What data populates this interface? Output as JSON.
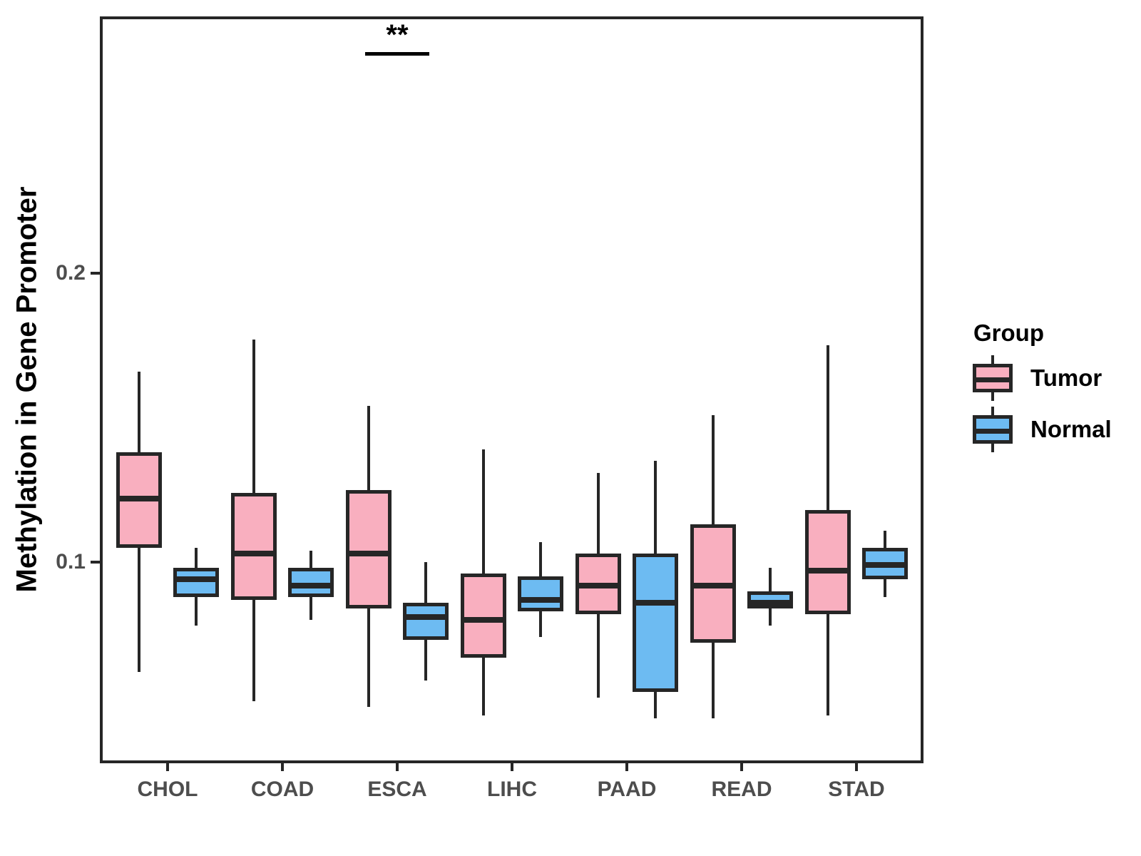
{
  "chart_data": {
    "type": "boxplot",
    "title": "",
    "xlabel": "",
    "ylabel": "Methylation in Gene Promoter",
    "categories": [
      "CHOL",
      "COAD",
      "ESCA",
      "LIHC",
      "PAAD",
      "READ",
      "STAD"
    ],
    "y_ticks": [
      "0.1",
      "0.2"
    ],
    "y_tick_values": [
      0.1,
      0.2
    ],
    "ylim": [
      0.0304,
      0.2889
    ],
    "grid": false,
    "panel_border": true,
    "colors": {
      "tumor_fill": "#F9AFBF",
      "normal_fill": "#6DBBF2",
      "stroke": "#262626",
      "axis_text": "#4D4D4D",
      "title_text": "#000000"
    },
    "legend": {
      "title": "Group",
      "position": "right",
      "entries": [
        {
          "label": "Tumor",
          "fill": "#F9AFBF"
        },
        {
          "label": "Normal",
          "fill": "#6DBBF2"
        }
      ]
    },
    "series": [
      {
        "name": "Tumor",
        "fill": "#F9AFBF",
        "boxes": [
          {
            "category": "CHOL",
            "min": 0.062,
            "q1": 0.105,
            "median": 0.122,
            "q3": 0.138,
            "max": 0.166
          },
          {
            "category": "COAD",
            "min": 0.052,
            "q1": 0.087,
            "median": 0.103,
            "q3": 0.124,
            "max": 0.177
          },
          {
            "category": "ESCA",
            "min": 0.05,
            "q1": 0.084,
            "median": 0.103,
            "q3": 0.125,
            "max": 0.154
          },
          {
            "category": "LIHC",
            "min": 0.047,
            "q1": 0.067,
            "median": 0.08,
            "q3": 0.096,
            "max": 0.139
          },
          {
            "category": "PAAD",
            "min": 0.053,
            "q1": 0.082,
            "median": 0.092,
            "q3": 0.103,
            "max": 0.131
          },
          {
            "category": "READ",
            "min": 0.046,
            "q1": 0.072,
            "median": 0.092,
            "q3": 0.113,
            "max": 0.151
          },
          {
            "category": "STAD",
            "min": 0.047,
            "q1": 0.082,
            "median": 0.097,
            "q3": 0.118,
            "max": 0.175
          }
        ]
      },
      {
        "name": "Normal",
        "fill": "#6DBBF2",
        "boxes": [
          {
            "category": "CHOL",
            "min": 0.078,
            "q1": 0.088,
            "median": 0.094,
            "q3": 0.098,
            "max": 0.105
          },
          {
            "category": "COAD",
            "min": 0.08,
            "q1": 0.088,
            "median": 0.092,
            "q3": 0.098,
            "max": 0.104
          },
          {
            "category": "ESCA",
            "min": 0.059,
            "q1": 0.073,
            "median": 0.081,
            "q3": 0.086,
            "max": 0.1
          },
          {
            "category": "LIHC",
            "min": 0.074,
            "q1": 0.083,
            "median": 0.087,
            "q3": 0.095,
            "max": 0.107
          },
          {
            "category": "PAAD",
            "min": 0.046,
            "q1": 0.055,
            "median": 0.086,
            "q3": 0.103,
            "max": 0.135
          },
          {
            "category": "READ",
            "min": 0.078,
            "q1": 0.084,
            "median": 0.086,
            "q3": 0.09,
            "max": 0.098
          },
          {
            "category": "STAD",
            "min": 0.088,
            "q1": 0.094,
            "median": 0.099,
            "q3": 0.105,
            "max": 0.111
          }
        ]
      }
    ],
    "annotations": [
      {
        "type": "significance",
        "label": "**",
        "category": "ESCA",
        "line_y": 0.276,
        "text_y": 0.282
      }
    ]
  }
}
